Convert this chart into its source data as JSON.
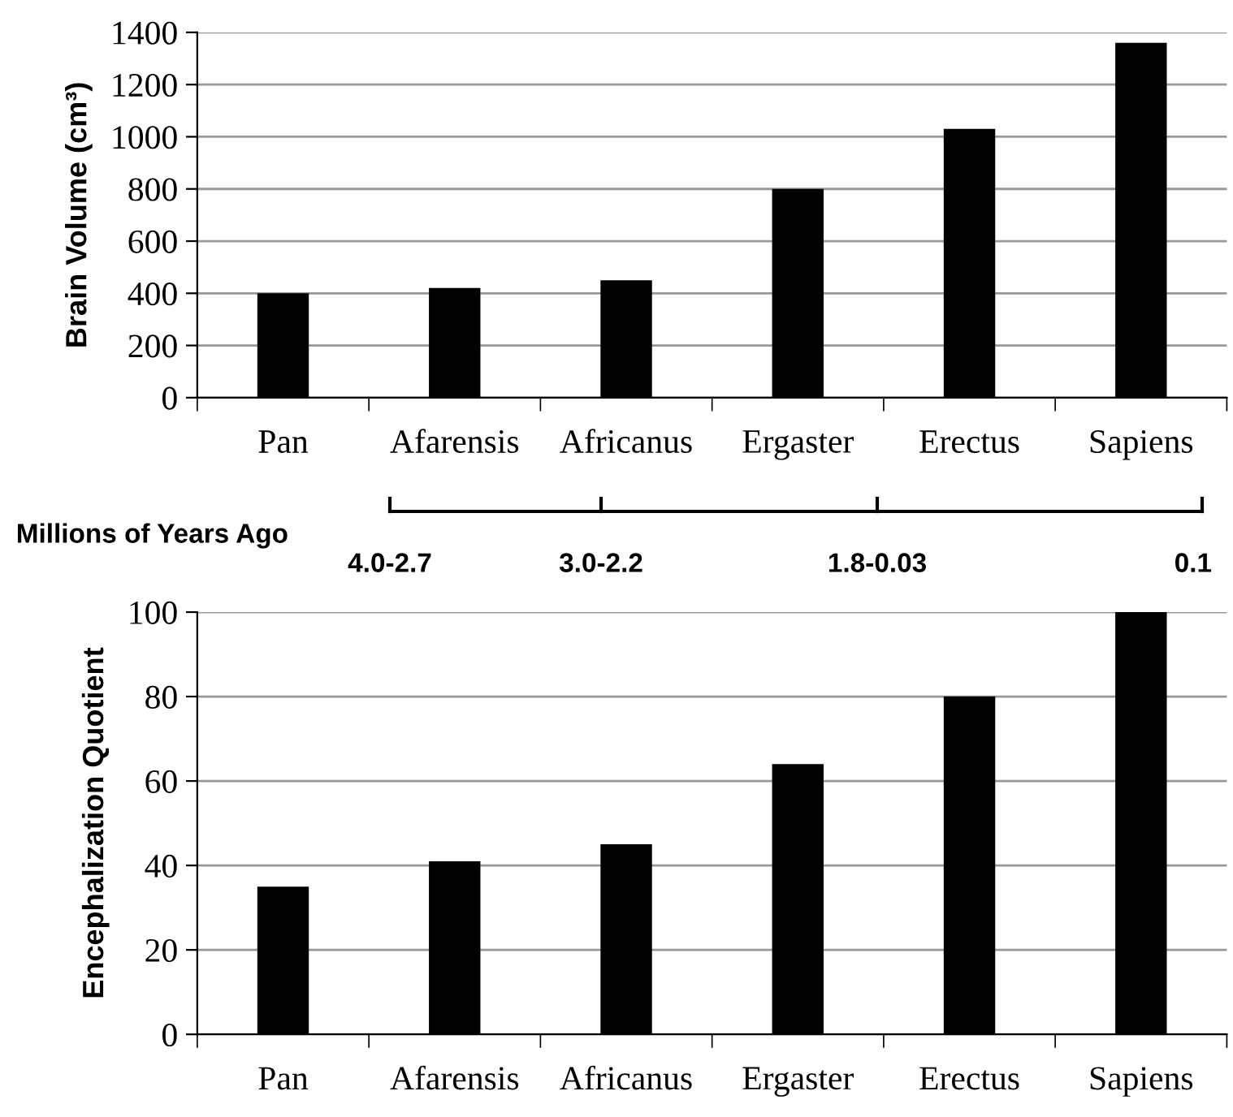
{
  "chart_data": [
    {
      "type": "bar",
      "ylabel": "Brain Volume (cm³)",
      "categories": [
        "Pan",
        "Afarensis",
        "Africanus",
        "Ergaster",
        "Erectus",
        "Sapiens"
      ],
      "values": [
        400,
        420,
        450,
        800,
        1030,
        1360
      ],
      "color": "#000000",
      "ylim": [
        0,
        1400
      ],
      "yticks": [
        0,
        200,
        400,
        600,
        800,
        1000,
        1200,
        1400
      ],
      "grid": "y",
      "annotations": [
        "Millions of Years Ago",
        "4.0-2.7",
        "3.0-2.2",
        "1.8-0.03",
        "0.1"
      ]
    },
    {
      "type": "bar",
      "ylabel": "Encephalization Quotient",
      "categories": [
        "Pan",
        "Afarensis",
        "Africanus",
        "Ergaster",
        "Erectus",
        "Sapiens"
      ],
      "values": [
        35,
        41,
        45,
        64,
        80,
        100
      ],
      "color": "#000000",
      "ylim": [
        0,
        100
      ],
      "yticks": [
        0,
        20,
        40,
        60,
        80,
        100
      ],
      "grid": "y"
    }
  ]
}
